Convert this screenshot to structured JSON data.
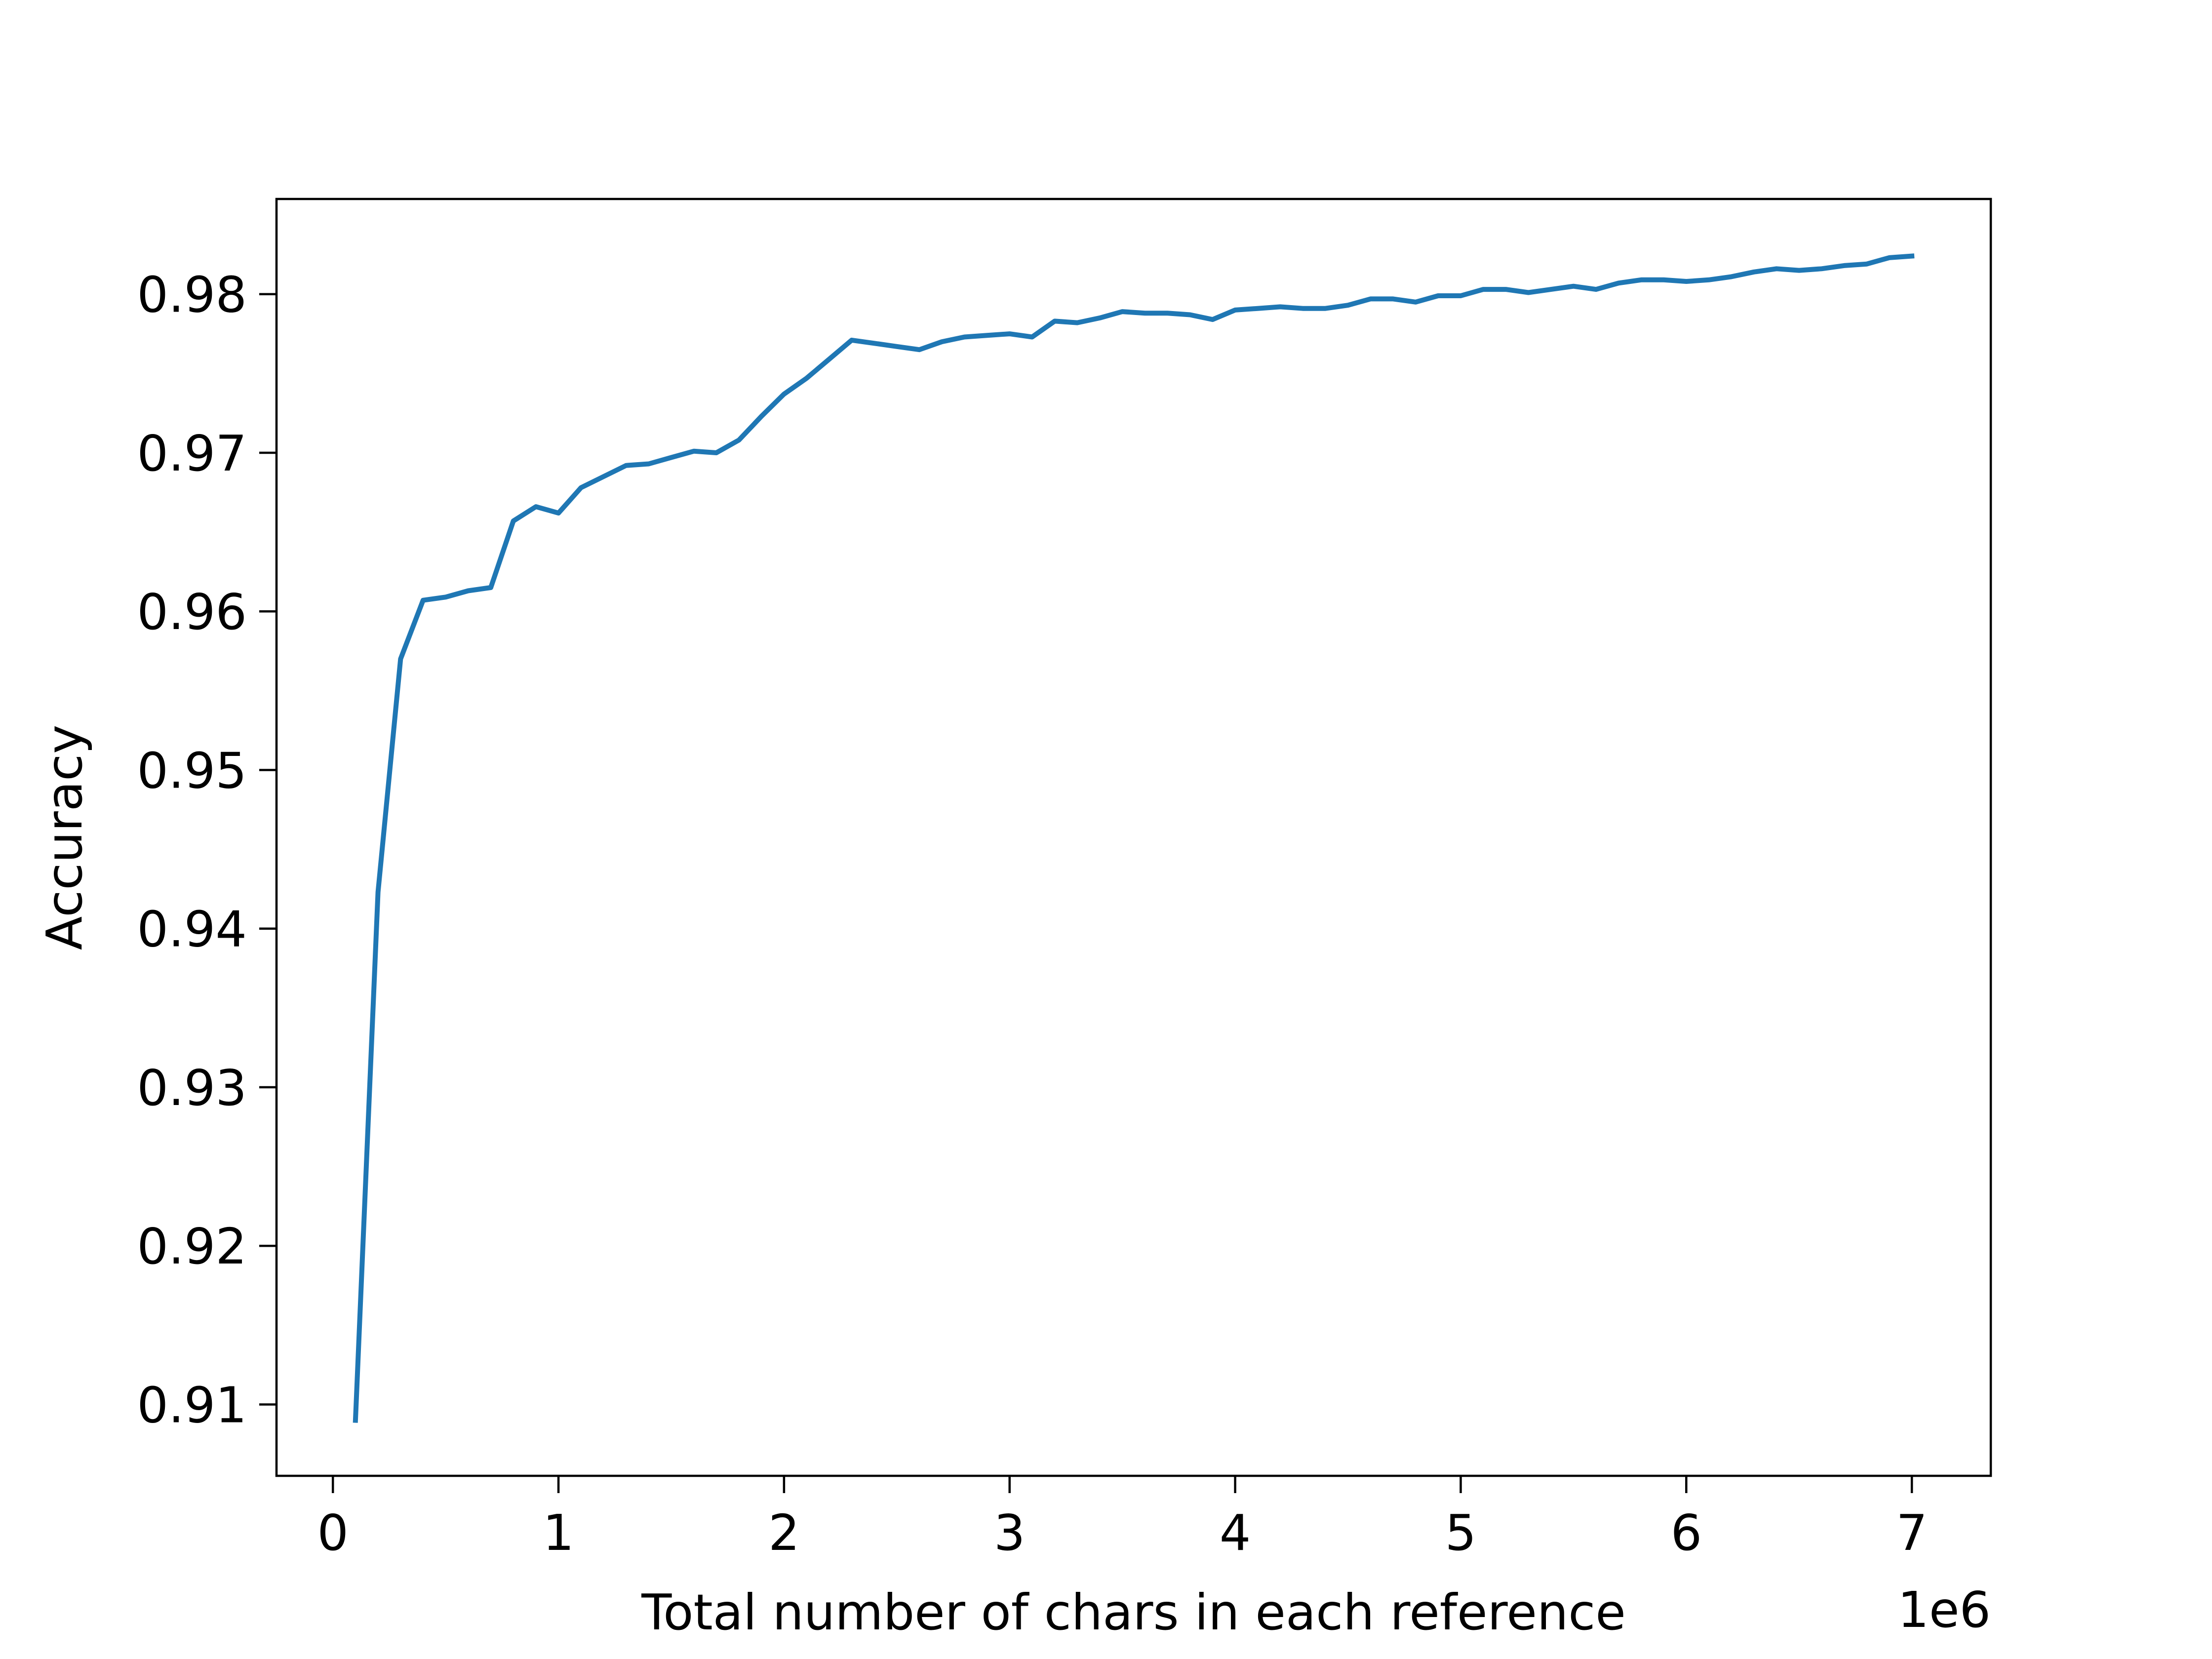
{
  "chart_data": {
    "type": "line",
    "title": "",
    "xlabel": "Total number of chars in each reference",
    "ylabel": "Accuracy",
    "x_offset_label": "1e6",
    "xlim": [
      -0.25,
      7.35
    ],
    "ylim": [
      0.9055,
      0.986
    ],
    "x_ticks": [
      0,
      1,
      2,
      3,
      4,
      5,
      6,
      7
    ],
    "x_tick_labels": [
      "0",
      "1",
      "2",
      "3",
      "4",
      "5",
      "6",
      "7"
    ],
    "y_ticks": [
      0.91,
      0.92,
      0.93,
      0.94,
      0.95,
      0.96,
      0.97,
      0.98
    ],
    "y_tick_labels": [
      "0.91",
      "0.92",
      "0.93",
      "0.94",
      "0.95",
      "0.96",
      "0.97",
      "0.98"
    ],
    "grid": false,
    "line_color": "#1f77b4",
    "series": [
      {
        "x": [
          0.1,
          0.2,
          0.3,
          0.4,
          0.5,
          0.6,
          0.7,
          0.8,
          0.9,
          1.0,
          1.1,
          1.2,
          1.3,
          1.4,
          1.5,
          1.6,
          1.7,
          1.8,
          1.9,
          2.0,
          2.1,
          2.2,
          2.3,
          2.4,
          2.5,
          2.6,
          2.7,
          2.8,
          2.9,
          3.0,
          3.1,
          3.2,
          3.3,
          3.4,
          3.5,
          3.6,
          3.7,
          3.8,
          3.9,
          4.0,
          4.1,
          4.2,
          4.3,
          4.4,
          4.5,
          4.6,
          4.7,
          4.8,
          4.9,
          5.0,
          5.1,
          5.2,
          5.3,
          5.4,
          5.5,
          5.6,
          5.7,
          5.8,
          5.9,
          6.0,
          6.1,
          6.2,
          6.3,
          6.4,
          6.5,
          6.6,
          6.7,
          6.8,
          6.9,
          7.0
        ],
        "y": [
          0.909,
          0.9423,
          0.957,
          0.9607,
          0.9609,
          0.9613,
          0.9615,
          0.9657,
          0.9666,
          0.9662,
          0.9678,
          0.9685,
          0.9692,
          0.9693,
          0.9697,
          0.9701,
          0.97,
          0.9708,
          0.9723,
          0.9737,
          0.9747,
          0.9759,
          0.9771,
          0.9769,
          0.9767,
          0.9765,
          0.977,
          0.9773,
          0.9774,
          0.9775,
          0.9773,
          0.9783,
          0.9782,
          0.9785,
          0.9789,
          0.9788,
          0.9788,
          0.9787,
          0.9784,
          0.979,
          0.9791,
          0.9792,
          0.9791,
          0.9791,
          0.9793,
          0.9797,
          0.9797,
          0.9795,
          0.9799,
          0.9799,
          0.9803,
          0.9803,
          0.9801,
          0.9803,
          0.9805,
          0.9803,
          0.9807,
          0.9809,
          0.9809,
          0.9808,
          0.9809,
          0.9811,
          0.9814,
          0.9816,
          0.9815,
          0.9816,
          0.9818,
          0.9819,
          0.9823,
          0.9824
        ]
      }
    ]
  }
}
